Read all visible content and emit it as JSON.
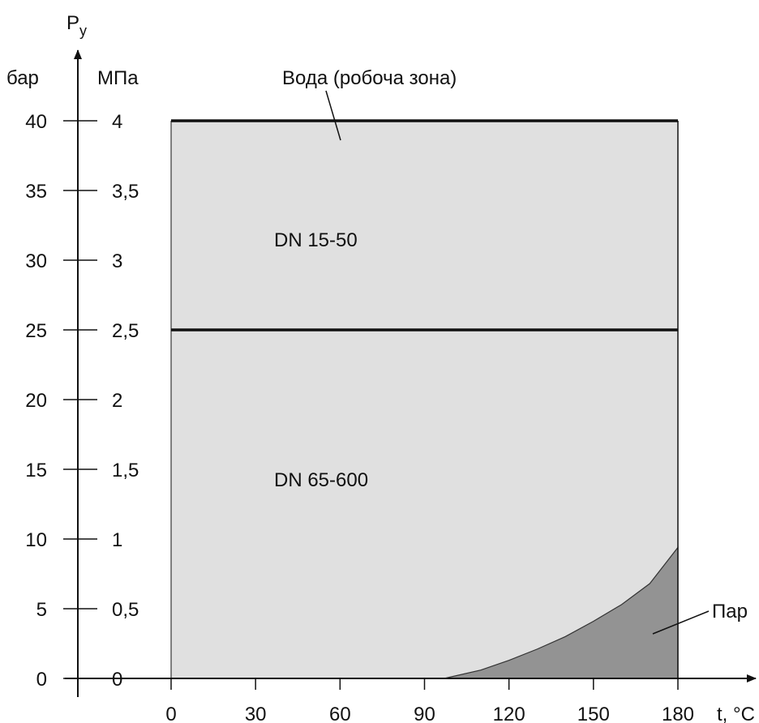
{
  "chart_data": {
    "type": "area",
    "y_axis_title": "P",
    "y_axis_title_subscript": "y",
    "y_unit_left": "бар",
    "y_unit_right": "МПа",
    "x_axis_title": "t, °C",
    "xlim": [
      0,
      180
    ],
    "ylim": [
      0,
      40
    ],
    "x_ticks": [
      "0",
      "30",
      "60",
      "90",
      "120",
      "150",
      "180"
    ],
    "x_tick_values": [
      0,
      30,
      60,
      90,
      120,
      150,
      180
    ],
    "y_tick_values": [
      0,
      5,
      10,
      15,
      20,
      25,
      30,
      35,
      40
    ],
    "y_ticks_bar": [
      "0",
      "5",
      "10",
      "15",
      "20",
      "25",
      "30",
      "35",
      "40"
    ],
    "y_ticks_mpa": [
      "0",
      "0,5",
      "1",
      "1,5",
      "2",
      "2,5",
      "3",
      "3,5",
      "4"
    ],
    "regions": [
      {
        "label": "DN 15-50",
        "limit_bar": 40,
        "x_range": [
          0,
          180
        ],
        "color": "#e0e0e0"
      },
      {
        "label": "DN 65-600",
        "limit_bar": 25,
        "x_range": [
          0,
          180
        ],
        "color": "#e0e0e0"
      }
    ],
    "water_annotation": "Вода (робоча зона)",
    "steam": {
      "label": "Пар",
      "color": "#939393",
      "curve": [
        [
          97,
          0
        ],
        [
          110,
          0.6
        ],
        [
          120,
          1.3
        ],
        [
          130,
          2.1
        ],
        [
          140,
          3.0
        ],
        [
          150,
          4.1
        ],
        [
          160,
          5.3
        ],
        [
          170,
          6.8
        ],
        [
          180,
          9.4
        ]
      ]
    },
    "grid": false
  }
}
